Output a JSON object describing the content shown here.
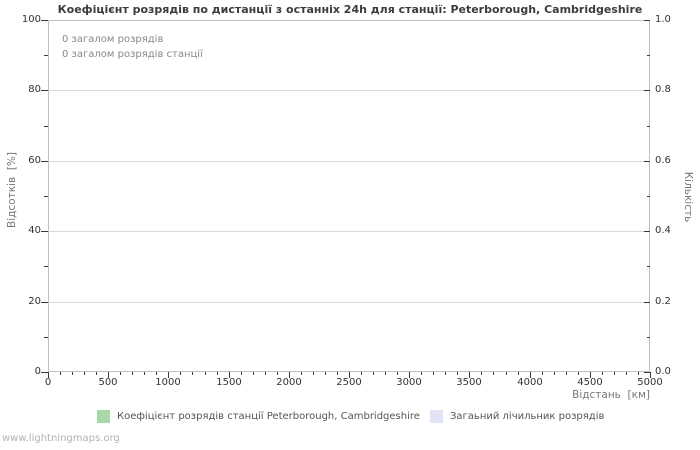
{
  "watermark": "www.lightningmaps.org",
  "chart_data": {
    "type": "line",
    "title": "Коефіцієнт розрядів по дистанції з останніх 24h для станції: Peterborough, Cambridgeshire",
    "xlabel": "Відстань  [км]",
    "ylabel_left": "Відсотків  [%]",
    "ylabel_right": "Кількість",
    "xlim": [
      0,
      5000
    ],
    "ylim_left": [
      0,
      100
    ],
    "ylim_right": [
      0,
      1
    ],
    "x_major_ticks": [
      0,
      500,
      1000,
      1500,
      2000,
      2500,
      3000,
      3500,
      4000,
      4500,
      5000
    ],
    "x_minor_step": 100,
    "y_left_major_ticks": [
      0,
      20,
      40,
      60,
      80,
      100
    ],
    "y_left_minor_step": 10,
    "y_right_major_ticks": [
      "0.0",
      "0.2",
      "0.4",
      "0.6",
      "0.8",
      "1.0"
    ],
    "y_right_minor_step": 0.1,
    "grid": "horizontal-major-only",
    "legend_position": "bottom-center",
    "annotations": [
      "0 загалом розрядів",
      "0 загалом розрядів станції"
    ],
    "series": [
      {
        "name": "Коефіцієнт розрядів станції Peterborough, Cambridgeshire",
        "color": "#a9d8a9",
        "axis": "left",
        "x": [],
        "values": []
      },
      {
        "name": "Загаьний лічильник розрядів",
        "color": "#e3e3f7",
        "axis": "right",
        "x": [],
        "values": []
      }
    ]
  }
}
